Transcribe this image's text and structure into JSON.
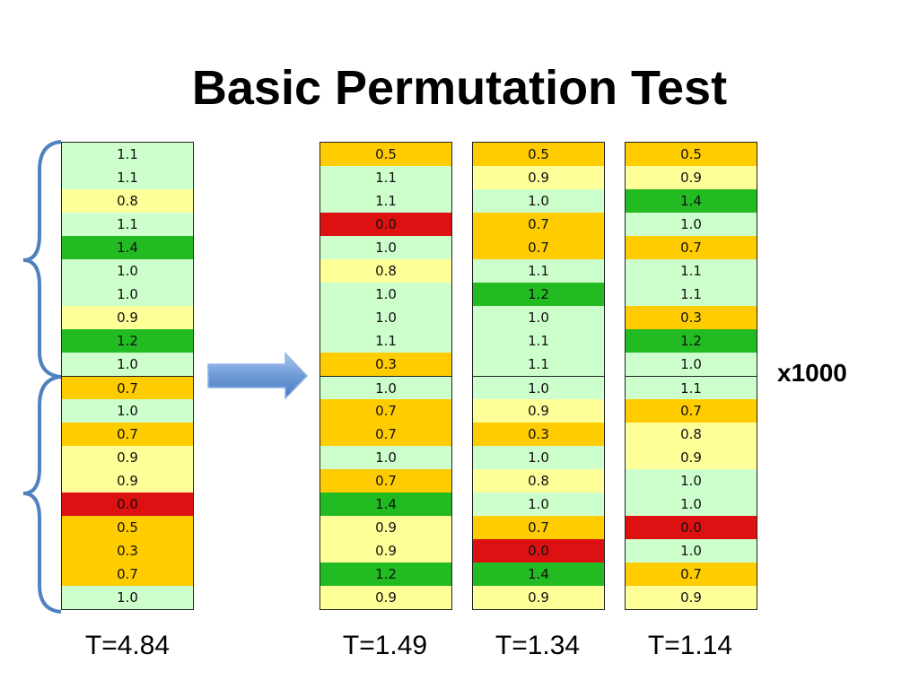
{
  "title": "Basic Permutation Test",
  "multiplier": "x1000",
  "columns": [
    {
      "values": [
        "1.1",
        "1.1",
        "0.8",
        "1.1",
        "1.4",
        "1.0",
        "1.0",
        "0.9",
        "1.2",
        "1.0",
        "0.7",
        "1.0",
        "0.7",
        "0.9",
        "0.9",
        "0.0",
        "0.5",
        "0.3",
        "0.7",
        "1.0"
      ],
      "colors": [
        "light",
        "light",
        "yellow",
        "light",
        "green",
        "light",
        "light",
        "yellow",
        "green",
        "light",
        "orange",
        "light",
        "orange",
        "yellow",
        "yellow",
        "red",
        "orange",
        "orange",
        "orange",
        "light"
      ],
      "t_label": "T=4.84"
    },
    {
      "values": [
        "0.5",
        "1.1",
        "1.1",
        "0.0",
        "1.0",
        "0.8",
        "1.0",
        "1.0",
        "1.1",
        "0.3",
        "1.0",
        "0.7",
        "0.7",
        "1.0",
        "0.7",
        "1.4",
        "0.9",
        "0.9",
        "1.2",
        "0.9"
      ],
      "colors": [
        "orange",
        "light",
        "light",
        "red",
        "light",
        "yellow",
        "light",
        "light",
        "light",
        "orange",
        "light",
        "orange",
        "orange",
        "light",
        "orange",
        "green",
        "yellow",
        "yellow",
        "green",
        "yellow"
      ],
      "t_label": "T=1.49"
    },
    {
      "values": [
        "0.5",
        "0.9",
        "1.0",
        "0.7",
        "0.7",
        "1.1",
        "1.2",
        "1.0",
        "1.1",
        "1.1",
        "1.0",
        "0.9",
        "0.3",
        "1.0",
        "0.8",
        "1.0",
        "0.7",
        "0.0",
        "1.4",
        "0.9"
      ],
      "colors": [
        "orange",
        "yellow",
        "light",
        "orange",
        "orange",
        "light",
        "green",
        "light",
        "light",
        "light",
        "light",
        "yellow",
        "orange",
        "light",
        "yellow",
        "light",
        "orange",
        "red",
        "green",
        "yellow"
      ],
      "t_label": "T=1.34"
    },
    {
      "values": [
        "0.5",
        "0.9",
        "1.4",
        "1.0",
        "0.7",
        "1.1",
        "1.1",
        "0.3",
        "1.2",
        "1.0",
        "1.1",
        "0.7",
        "0.8",
        "0.9",
        "1.0",
        "1.0",
        "0.0",
        "1.0",
        "0.7",
        "0.9"
      ],
      "colors": [
        "orange",
        "yellow",
        "green",
        "light",
        "orange",
        "light",
        "light",
        "orange",
        "green",
        "light",
        "light",
        "orange",
        "yellow",
        "yellow",
        "light",
        "light",
        "red",
        "light",
        "orange",
        "yellow"
      ],
      "t_label": "T=1.14"
    }
  ],
  "palette": {
    "light": "#ccffcc",
    "yellow": "#ffff99",
    "orange": "#ffcc00",
    "green": "#22bb22",
    "red": "#dd1111",
    "brace": "#4f81bd",
    "arrow": "#6d9ad6"
  }
}
